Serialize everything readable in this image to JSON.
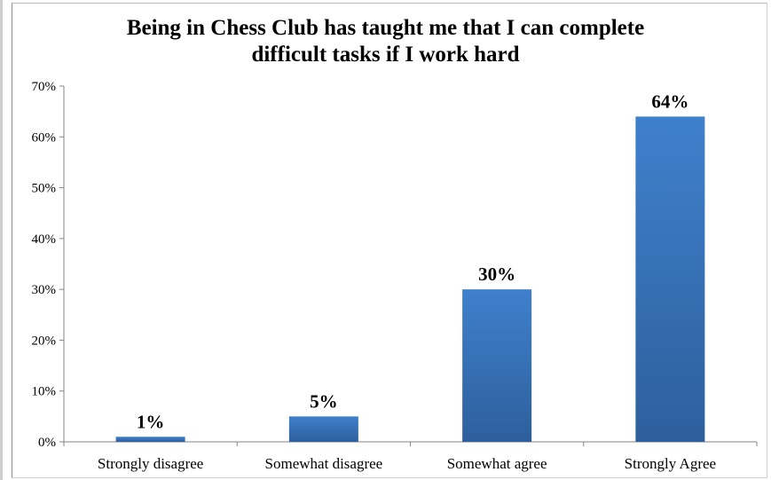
{
  "chart_data": {
    "type": "bar",
    "title": "Being in Chess Club has taught me that I can complete difficult tasks if I work hard",
    "title_lines": [
      "Being in Chess Club has taught me that I can complete",
      "difficult tasks if I work hard"
    ],
    "categories": [
      "Strongly disagree",
      "Somewhat disagree",
      "Somewhat agree",
      "Strongly Agree"
    ],
    "values": [
      1,
      5,
      30,
      64
    ],
    "data_labels": [
      "1%",
      "5%",
      "30%",
      "64%"
    ],
    "ylim": [
      0,
      70
    ],
    "yticks": [
      0,
      10,
      20,
      30,
      40,
      50,
      60,
      70
    ],
    "ytick_labels": [
      "0%",
      "10%",
      "20%",
      "30%",
      "40%",
      "50%",
      "60%",
      "70%"
    ],
    "xlabel": "",
    "ylabel": "",
    "grid": false,
    "legend": "none",
    "bar_color_top": "#3f80cc",
    "bar_color_bottom": "#2d5f9c"
  }
}
